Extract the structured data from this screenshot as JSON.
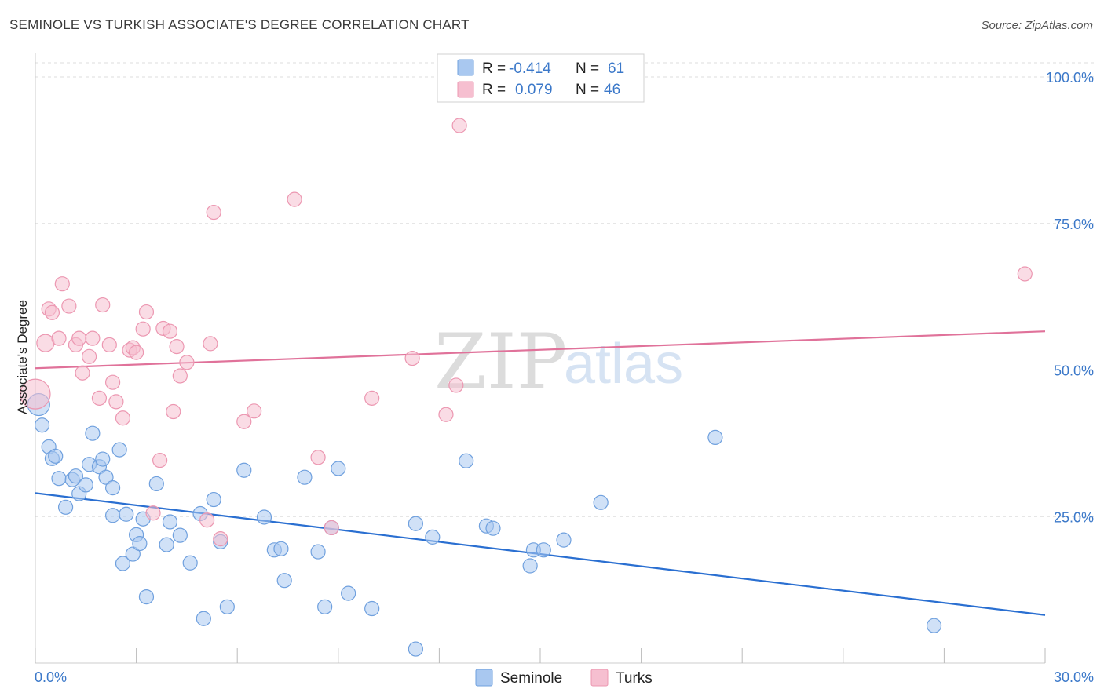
{
  "header": {
    "title": "SEMINOLE VS TURKISH ASSOCIATE'S DEGREE CORRELATION CHART",
    "source": "Source: ZipAtlas.com"
  },
  "watermark": {
    "zip": "ZIP",
    "atlas": "atlas"
  },
  "colors": {
    "seminole_fill": "#a9c8f0",
    "seminole_stroke": "#6fa0de",
    "seminole_line": "#2a6fd1",
    "turks_fill": "#f6bfd0",
    "turks_stroke": "#ec97b1",
    "turks_line": "#e0729a",
    "tick_label": "#3b78c9",
    "grid": "#dddddd"
  },
  "legend": {
    "rows": [
      {
        "r_label": "R =",
        "r_value": "-0.414",
        "n_label": "N =",
        "n_value": "61"
      },
      {
        "r_label": "R =",
        "r_value": "0.079",
        "n_label": "N =",
        "n_value": "46"
      }
    ]
  },
  "bottom_legend": {
    "items": [
      "Seminole",
      "Turks"
    ]
  },
  "chart_data": {
    "type": "scatter",
    "title": "SEMINOLE VS TURKISH ASSOCIATE'S DEGREE CORRELATION CHART",
    "ylabel": "Associate's Degree",
    "xlim": [
      0,
      30
    ],
    "ylim": [
      0,
      100
    ],
    "x_ticks_labeled": [
      "0.0%",
      "30.0%"
    ],
    "y_ticks_labeled": [
      "25.0%",
      "50.0%",
      "75.0%",
      "100.0%"
    ],
    "y_tick_values": [
      25,
      50,
      75,
      100
    ],
    "x_tick_values": [
      0,
      3,
      6,
      9,
      12,
      15,
      18,
      21,
      24,
      27,
      30
    ],
    "grid": "horizontal dashed",
    "legend_position": "top-center",
    "series": [
      {
        "name": "Seminole",
        "r": -0.414,
        "n": 61,
        "trend": {
          "x": [
            0,
            30
          ],
          "y": [
            29.0,
            8.2
          ]
        },
        "points": [
          [
            0.1,
            44.1,
            14
          ],
          [
            0.2,
            40.6,
            9
          ],
          [
            0.4,
            36.9,
            9
          ],
          [
            0.5,
            34.9,
            9
          ],
          [
            0.6,
            35.3,
            9
          ],
          [
            0.7,
            31.5,
            9
          ],
          [
            0.9,
            26.6,
            9
          ],
          [
            1.1,
            31.3,
            9
          ],
          [
            1.2,
            31.9,
            9
          ],
          [
            1.3,
            28.9,
            9
          ],
          [
            1.5,
            30.4,
            9
          ],
          [
            1.6,
            33.9,
            9
          ],
          [
            1.7,
            39.2,
            9
          ],
          [
            1.9,
            33.5,
            9
          ],
          [
            2.0,
            34.8,
            9
          ],
          [
            2.1,
            31.7,
            9
          ],
          [
            2.3,
            25.2,
            9
          ],
          [
            2.3,
            29.9,
            9
          ],
          [
            2.5,
            36.4,
            9
          ],
          [
            2.6,
            17.0,
            9
          ],
          [
            2.7,
            25.4,
            9
          ],
          [
            2.9,
            18.6,
            9
          ],
          [
            3.0,
            21.9,
            9
          ],
          [
            3.1,
            20.4,
            9
          ],
          [
            3.2,
            24.6,
            9
          ],
          [
            3.3,
            11.3,
            9
          ],
          [
            3.6,
            30.6,
            9
          ],
          [
            3.9,
            20.2,
            9
          ],
          [
            4.0,
            24.1,
            9
          ],
          [
            4.3,
            21.8,
            9
          ],
          [
            4.6,
            17.1,
            9
          ],
          [
            4.9,
            25.5,
            9
          ],
          [
            5.0,
            7.6,
            9
          ],
          [
            5.3,
            27.9,
            9
          ],
          [
            5.5,
            20.7,
            9
          ],
          [
            5.7,
            9.6,
            9
          ],
          [
            6.2,
            32.9,
            9
          ],
          [
            6.8,
            24.9,
            9
          ],
          [
            7.1,
            19.3,
            9
          ],
          [
            7.3,
            19.5,
            9
          ],
          [
            7.4,
            14.1,
            9
          ],
          [
            8.0,
            31.7,
            9
          ],
          [
            8.4,
            19.0,
            9
          ],
          [
            8.6,
            9.6,
            9
          ],
          [
            8.8,
            23.1,
            9
          ],
          [
            9.0,
            33.2,
            9
          ],
          [
            9.3,
            11.9,
            9
          ],
          [
            10.0,
            9.3,
            9
          ],
          [
            11.3,
            2.4,
            9
          ],
          [
            11.3,
            23.8,
            9
          ],
          [
            11.8,
            21.5,
            9
          ],
          [
            12.8,
            34.5,
            9
          ],
          [
            13.4,
            23.4,
            9
          ],
          [
            13.6,
            23.0,
            9
          ],
          [
            14.7,
            16.6,
            9
          ],
          [
            14.8,
            19.3,
            9
          ],
          [
            15.1,
            19.3,
            9
          ],
          [
            15.7,
            21.0,
            9
          ],
          [
            16.8,
            27.4,
            9
          ],
          [
            20.2,
            38.5,
            9
          ],
          [
            26.7,
            6.4,
            9
          ]
        ]
      },
      {
        "name": "Turks",
        "r": 0.079,
        "n": 46,
        "trend": {
          "x": [
            0,
            30
          ],
          "y": [
            50.3,
            56.6
          ]
        },
        "points": [
          [
            0.0,
            45.9,
            19
          ],
          [
            0.3,
            54.6,
            11
          ],
          [
            0.4,
            60.4,
            9
          ],
          [
            0.5,
            59.8,
            9
          ],
          [
            0.7,
            55.4,
            9
          ],
          [
            0.8,
            64.7,
            9
          ],
          [
            1.0,
            60.9,
            9
          ],
          [
            1.2,
            54.3,
            9
          ],
          [
            1.3,
            55.4,
            9
          ],
          [
            1.4,
            49.5,
            9
          ],
          [
            1.6,
            52.3,
            9
          ],
          [
            1.7,
            55.4,
            9
          ],
          [
            1.9,
            45.2,
            9
          ],
          [
            2.0,
            61.1,
            9
          ],
          [
            2.2,
            54.3,
            9
          ],
          [
            2.3,
            47.9,
            9
          ],
          [
            2.4,
            44.6,
            9
          ],
          [
            2.6,
            41.8,
            9
          ],
          [
            2.8,
            53.4,
            9
          ],
          [
            2.9,
            53.8,
            9
          ],
          [
            3.0,
            53.0,
            9
          ],
          [
            3.2,
            57.0,
            9
          ],
          [
            3.3,
            59.9,
            9
          ],
          [
            3.5,
            25.6,
            9
          ],
          [
            3.7,
            34.6,
            9
          ],
          [
            3.8,
            57.1,
            9
          ],
          [
            4.0,
            56.6,
            9
          ],
          [
            4.1,
            42.9,
            9
          ],
          [
            4.2,
            54.0,
            9
          ],
          [
            4.3,
            49.0,
            9
          ],
          [
            4.5,
            51.3,
            9
          ],
          [
            5.1,
            24.4,
            9
          ],
          [
            5.2,
            54.5,
            9
          ],
          [
            5.3,
            76.9,
            9
          ],
          [
            5.5,
            21.2,
            9
          ],
          [
            6.2,
            41.2,
            9
          ],
          [
            6.5,
            43.0,
            9
          ],
          [
            7.7,
            79.1,
            9
          ],
          [
            8.4,
            35.1,
            9
          ],
          [
            8.8,
            23.1,
            9
          ],
          [
            10.0,
            45.2,
            9
          ],
          [
            11.2,
            52.0,
            9
          ],
          [
            12.2,
            42.4,
            9
          ],
          [
            12.5,
            47.4,
            9
          ],
          [
            12.6,
            91.7,
            9
          ],
          [
            29.4,
            66.4,
            9
          ]
        ]
      }
    ]
  }
}
